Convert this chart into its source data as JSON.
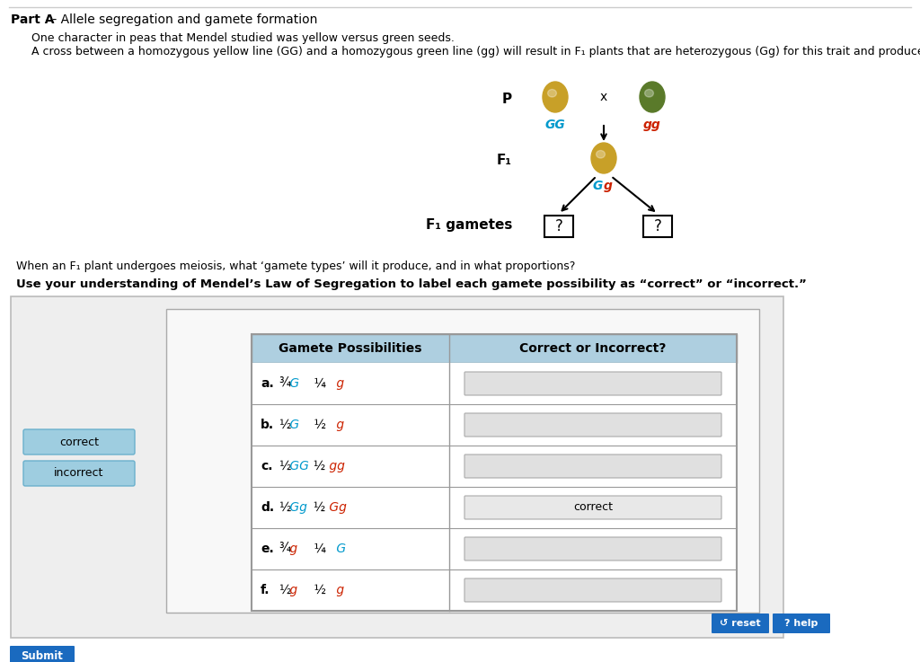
{
  "title_bold": "Part A",
  "title_normal": " - Allele segregation and gamete formation",
  "line1": "One character in peas that Mendel studied was yellow versus green seeds.",
  "line2": "A cross between a homozygous yellow line (GG) and a homozygous green line (gg) will result in F₁ plants that are heterozygous (Gg) for this trait and produce yellow seeds.",
  "p_label": "P",
  "f1_label": "F₁",
  "f1_gametes_label": "F₁ gametes",
  "GG_label": "GG",
  "gg_label": "gg",
  "Gg_label_G": "G",
  "Gg_label_g": "g",
  "x_label": "x",
  "question_text": "?",
  "meiosis_question": "When an F₁ plant undergoes meiosis, what ‘gamete types’ will it produce, and in what proportions?",
  "mendel_law_text": "Use your understanding of Mendel’s Law of Segregation to label each gamete possibility as “correct” or “incorrect.”",
  "table_header_col1": "Gamete Possibilities",
  "table_header_col2": "Correct or Incorrect?",
  "rows": [
    {
      "label": "a.",
      "parts": [
        {
          "text": "¾",
          "color": "#000000",
          "italic": false
        },
        {
          "text": " G",
          "color": "#0099cc",
          "italic": true
        },
        {
          "text": "    ¼",
          "color": "#000000",
          "italic": false
        },
        {
          "text": " g",
          "color": "#cc2200",
          "italic": true
        }
      ],
      "answer": "",
      "answered": false
    },
    {
      "label": "b.",
      "parts": [
        {
          "text": "½",
          "color": "#000000",
          "italic": false
        },
        {
          "text": " G",
          "color": "#0099cc",
          "italic": true
        },
        {
          "text": "    ½",
          "color": "#000000",
          "italic": false
        },
        {
          "text": " g",
          "color": "#cc2200",
          "italic": true
        }
      ],
      "answer": "",
      "answered": false
    },
    {
      "label": "c.",
      "parts": [
        {
          "text": "½",
          "color": "#000000",
          "italic": false
        },
        {
          "text": " GG",
          "color": "#0099cc",
          "italic": true
        },
        {
          "text": "  ½",
          "color": "#000000",
          "italic": false
        },
        {
          "text": " gg",
          "color": "#cc2200",
          "italic": true
        }
      ],
      "answer": "",
      "answered": false
    },
    {
      "label": "d.",
      "parts": [
        {
          "text": "½",
          "color": "#000000",
          "italic": false
        },
        {
          "text": " Gg",
          "color": "#0099cc",
          "italic": true
        },
        {
          "text": "  ½",
          "color": "#000000",
          "italic": false
        },
        {
          "text": " Gg",
          "color": "#cc2200",
          "italic": true
        }
      ],
      "answer": "correct",
      "answered": true
    },
    {
      "label": "e.",
      "parts": [
        {
          "text": "¾",
          "color": "#000000",
          "italic": false
        },
        {
          "text": " g",
          "color": "#cc2200",
          "italic": true
        },
        {
          "text": "    ¼",
          "color": "#000000",
          "italic": false
        },
        {
          "text": " G",
          "color": "#0099cc",
          "italic": true
        }
      ],
      "answer": "",
      "answered": false
    },
    {
      "label": "f.",
      "parts": [
        {
          "text": "½",
          "color": "#000000",
          "italic": false
        },
        {
          "text": " g",
          "color": "#cc2200",
          "italic": true
        },
        {
          "text": "    ½",
          "color": "#000000",
          "italic": false
        },
        {
          "text": " g",
          "color": "#cc2200",
          "italic": true
        }
      ],
      "answer": "",
      "answered": false
    }
  ],
  "yellow_seed_color": "#c8a028",
  "green_seed_color": "#5a7a2a",
  "bg_outer": "#ffffff",
  "table_header_bg": "#aecfe0",
  "table_border": "#999999",
  "correct_btn_color": "#9ecde0",
  "reset_color": "#1a6abf",
  "help_color": "#1a6abf",
  "submit_color": "#1a6abf",
  "panel_bg": "#eeeeee",
  "inner_bg": "#f8f8f8"
}
